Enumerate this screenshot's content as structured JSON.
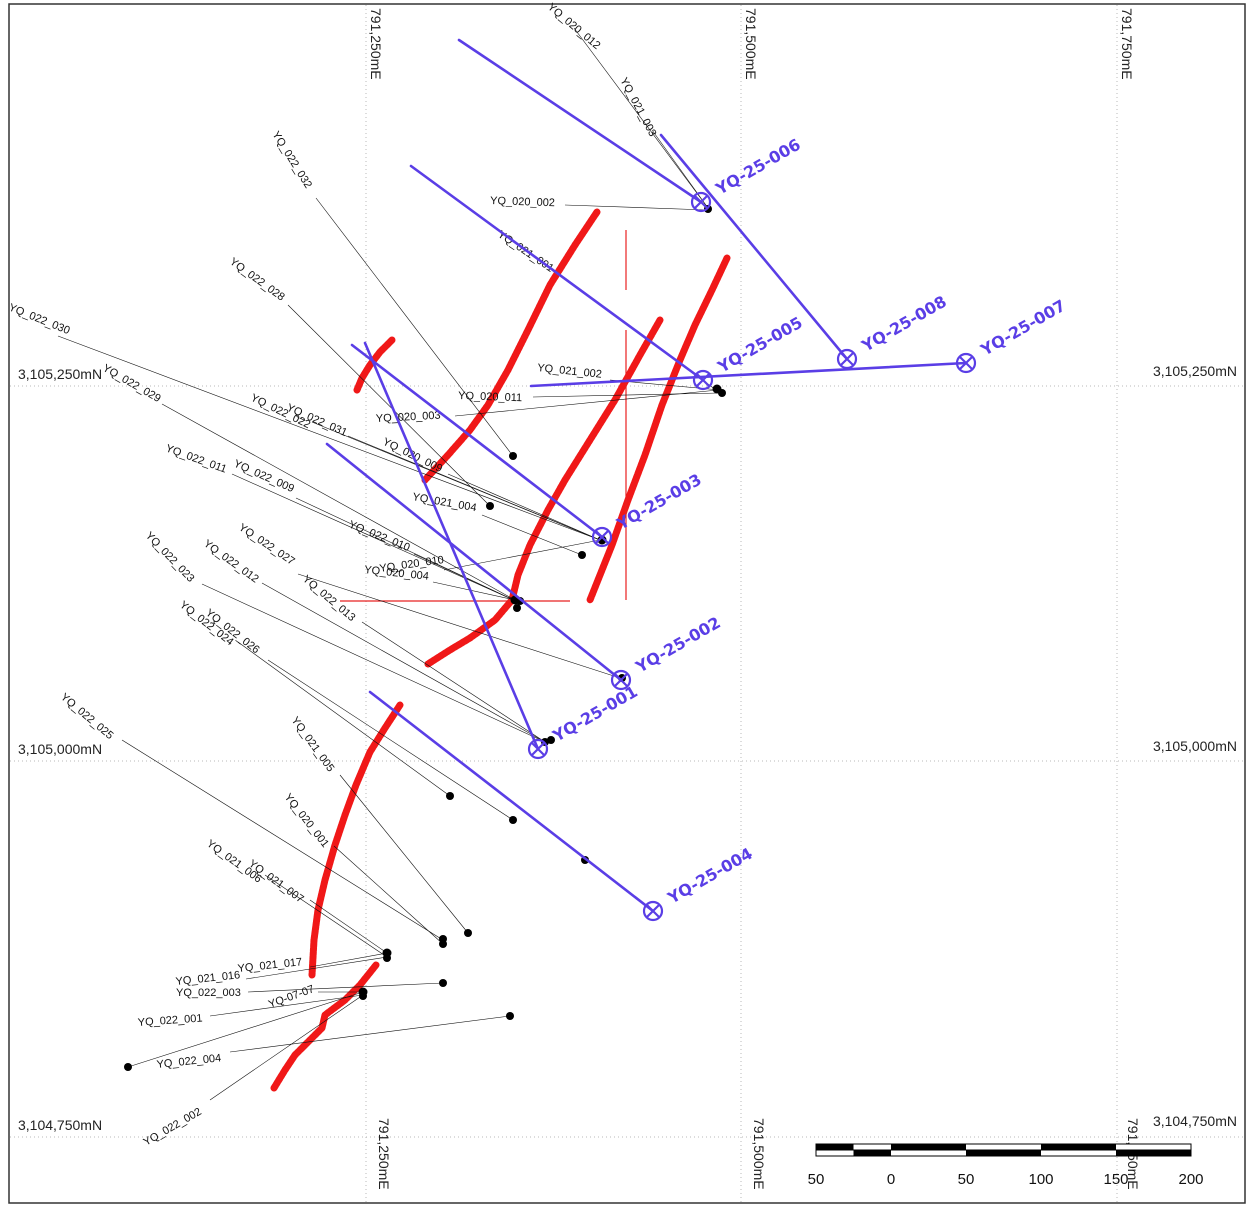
{
  "map": {
    "easting_grid": [
      "791,250mE",
      "791,500mE",
      "791,750mE"
    ],
    "northing_grid": [
      "3,105,250mN",
      "3,105,000mN",
      "3,104,750mN"
    ],
    "historic_holes": [
      "YQ_020_012",
      "YQ_021_003",
      "YQ_020_002",
      "YQ_022_032",
      "YQ_021_001",
      "YQ_022_028",
      "YQ_022_030",
      "YQ_022_029",
      "YQ_021_002",
      "YQ_020_011",
      "YQ_020_003",
      "YQ_022_022",
      "YQ_022_031",
      "YQ_020_009",
      "YQ_022_011",
      "YQ_022_009",
      "YQ_021_004",
      "YQ_022_010",
      "YQ_020_010",
      "YQ_020_004",
      "YQ_022_023",
      "YQ_022_012",
      "YQ_022_027",
      "YQ_022_013",
      "YQ_022_024",
      "YQ_022_026",
      "YQ_022_025",
      "YQ_021_005",
      "YQ_020_001",
      "YQ_021_006",
      "YQ_021_007",
      "YQ_021_017",
      "YQ_021_016",
      "YQ_022_003",
      "YQ-07-07",
      "YQ_022_001",
      "YQ_022_004",
      "YQ_022_002"
    ],
    "planned_holes": [
      "YQ-25-006",
      "YQ-25-008",
      "YQ-25-007",
      "YQ-25-005",
      "YQ-25-003",
      "YQ-25-002",
      "YQ-25-001",
      "YQ-25-004"
    ],
    "colors": {
      "planned": "#5a3ee6",
      "vein": "#f01818",
      "trace": "#111111"
    }
  },
  "scale_bar": {
    "labels": [
      "50",
      "0",
      "50",
      "100",
      "150",
      "200"
    ]
  }
}
